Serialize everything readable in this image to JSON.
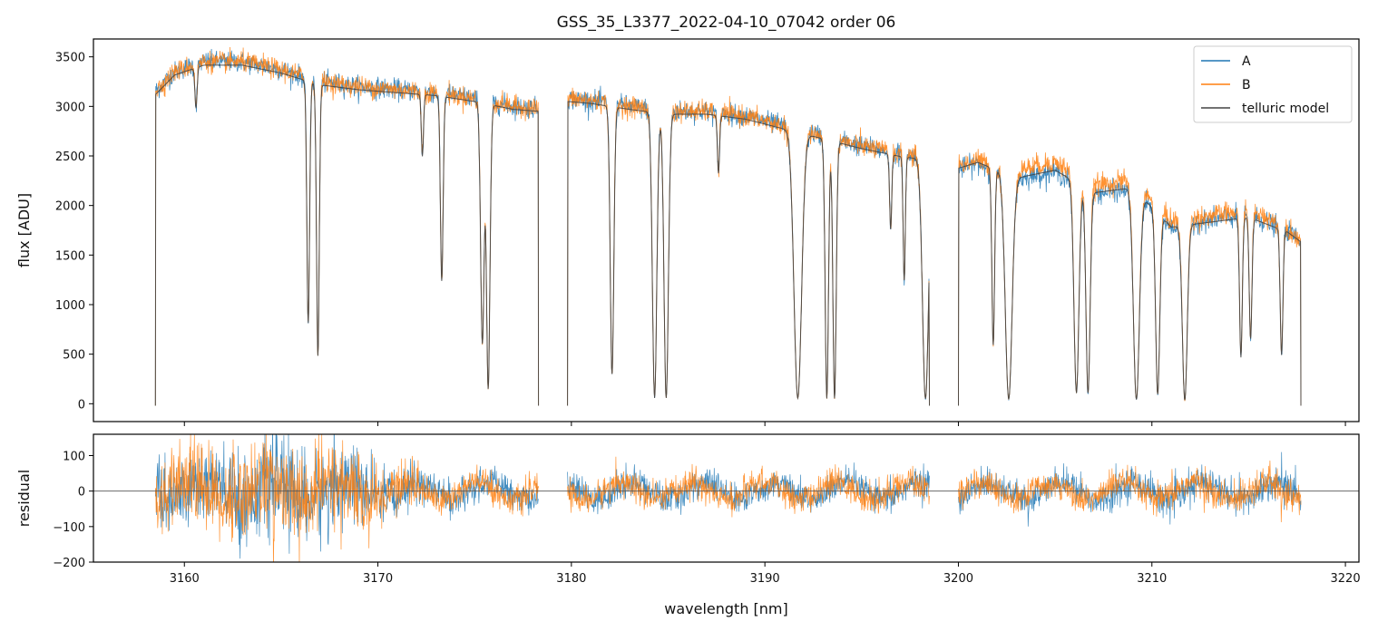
{
  "chart_data": [
    {
      "type": "line",
      "title": "GSS_35_L3377_2022-04-10_07042  order 06",
      "xlabel": "",
      "ylabel": "flux [ADU]",
      "xlim": [
        3155.3,
        3220.7
      ],
      "ylim": [
        -180,
        3680
      ],
      "xticks": [
        3160,
        3170,
        3180,
        3190,
        3200,
        3210,
        3220
      ],
      "yticks": [
        0,
        500,
        1000,
        1500,
        2000,
        2500,
        3000,
        3500
      ],
      "ytick_labels": [
        "0",
        "500",
        "1000",
        "1500",
        "2000",
        "2500",
        "3000",
        "3500"
      ],
      "legend_position": "top-right",
      "segments": [
        [
          3158.5,
          3178.3
        ],
        [
          3179.8,
          3198.5
        ],
        [
          3200.0,
          3217.7
        ]
      ],
      "continuum_points": {
        "x": [
          3158.5,
          3159.5,
          3161.0,
          3163.0,
          3165.0,
          3167.0,
          3169.0,
          3171.0,
          3173.0,
          3175.0,
          3177.0,
          3178.3,
          3179.8,
          3181.0,
          3183.0,
          3185.0,
          3187.0,
          3189.0,
          3191.0,
          3193.0,
          3195.0,
          3197.0,
          3198.5,
          3200.0,
          3201.0,
          3203.0,
          3205.0,
          3207.0,
          3209.0,
          3211.0,
          3213.0,
          3215.0,
          3217.0,
          3217.7
        ],
        "y": [
          3150,
          3350,
          3450,
          3450,
          3370,
          3250,
          3200,
          3170,
          3140,
          3080,
          3000,
          2980,
          3080,
          3060,
          3000,
          2950,
          2950,
          2900,
          2800,
          2700,
          2600,
          2520,
          2480,
          2400,
          2460,
          2300,
          2380,
          2150,
          2200,
          1800,
          1850,
          1900,
          1750,
          1650
        ]
      },
      "absorption_lines": [
        {
          "center": 3160.6,
          "depth": 0.12,
          "width": 0.08
        },
        {
          "center": 3166.4,
          "depth": 0.75,
          "width": 0.1
        },
        {
          "center": 3166.9,
          "depth": 0.85,
          "width": 0.1
        },
        {
          "center": 3172.3,
          "depth": 0.2,
          "width": 0.08
        },
        {
          "center": 3173.3,
          "depth": 0.6,
          "width": 0.1
        },
        {
          "center": 3175.4,
          "depth": 0.8,
          "width": 0.13
        },
        {
          "center": 3175.7,
          "depth": 0.95,
          "width": 0.13
        },
        {
          "center": 3182.1,
          "depth": 0.9,
          "width": 0.13
        },
        {
          "center": 3184.3,
          "depth": 0.98,
          "width": 0.16
        },
        {
          "center": 3184.9,
          "depth": 0.98,
          "width": 0.16
        },
        {
          "center": 3187.6,
          "depth": 0.2,
          "width": 0.08
        },
        {
          "center": 3191.7,
          "depth": 0.98,
          "width": 0.28
        },
        {
          "center": 3193.2,
          "depth": 0.98,
          "width": 0.12
        },
        {
          "center": 3193.6,
          "depth": 0.98,
          "width": 0.12
        },
        {
          "center": 3196.5,
          "depth": 0.3,
          "width": 0.08
        },
        {
          "center": 3197.2,
          "depth": 0.5,
          "width": 0.08
        },
        {
          "center": 3198.3,
          "depth": 0.98,
          "width": 0.22
        },
        {
          "center": 3201.8,
          "depth": 0.75,
          "width": 0.1
        },
        {
          "center": 3202.6,
          "depth": 0.98,
          "width": 0.25
        },
        {
          "center": 3206.1,
          "depth": 0.95,
          "width": 0.18
        },
        {
          "center": 3206.7,
          "depth": 0.95,
          "width": 0.15
        },
        {
          "center": 3209.2,
          "depth": 0.98,
          "width": 0.22
        },
        {
          "center": 3210.3,
          "depth": 0.95,
          "width": 0.15
        },
        {
          "center": 3211.7,
          "depth": 0.98,
          "width": 0.18
        },
        {
          "center": 3214.6,
          "depth": 0.75,
          "width": 0.1
        },
        {
          "center": 3215.1,
          "depth": 0.65,
          "width": 0.1
        },
        {
          "center": 3216.7,
          "depth": 0.72,
          "width": 0.1
        }
      ],
      "series": [
        {
          "name": "A",
          "color": "#1f77b4",
          "scale": 1.0,
          "noise_amplitude": 45
        },
        {
          "name": "B",
          "color": "#ff7f0e",
          "scale": 1.0,
          "noise_amplitude": 45
        },
        {
          "name": "telluric model",
          "color": "#444444",
          "scale": 0.99,
          "noise_amplitude": 0
        }
      ]
    },
    {
      "type": "line",
      "title": "",
      "xlabel": "wavelength [nm]",
      "ylabel": "residual",
      "xlim": [
        3155.3,
        3220.7
      ],
      "ylim": [
        -200,
        160
      ],
      "xticks": [
        3160,
        3170,
        3180,
        3190,
        3200,
        3210,
        3220
      ],
      "xtick_labels": [
        "3160",
        "3170",
        "3180",
        "3190",
        "3200",
        "3210",
        "3220"
      ],
      "yticks": [
        -200,
        -100,
        0,
        100
      ],
      "ytick_labels": [
        "−200",
        "−100",
        "0",
        "100"
      ],
      "reference_line": 0,
      "segments": [
        [
          3158.5,
          3178.3
        ],
        [
          3179.8,
          3198.5
        ],
        [
          3200.0,
          3217.7
        ]
      ],
      "noise_envelope": {
        "x": [
          3158.5,
          3160,
          3163,
          3166,
          3168,
          3170,
          3172,
          3175,
          3178.3,
          3179.8,
          3185,
          3190,
          3198.5,
          3200,
          3205,
          3210,
          3217.7
        ],
        "sigma": [
          80,
          110,
          120,
          120,
          110,
          80,
          50,
          40,
          35,
          35,
          40,
          35,
          40,
          40,
          35,
          40,
          45
        ]
      },
      "series": [
        {
          "name": "A",
          "color": "#1f77b4"
        },
        {
          "name": "B",
          "color": "#ff7f0e"
        }
      ]
    }
  ]
}
